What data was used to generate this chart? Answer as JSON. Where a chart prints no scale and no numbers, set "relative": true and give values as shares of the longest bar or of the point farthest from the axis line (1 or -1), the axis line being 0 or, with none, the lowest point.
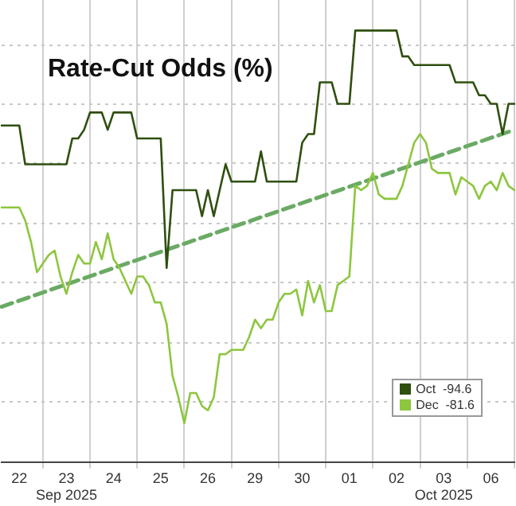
{
  "chart_data": {
    "type": "line",
    "title": "Rate-Cut Odds (%)",
    "relative": true,
    "grid": true,
    "legend": "bottom right",
    "categories": [
      null,
      null,
      null,
      "22",
      null,
      null,
      null,
      null,
      null,
      null,
      null,
      "23\nSep 2025",
      null,
      null,
      null,
      null,
      null,
      null,
      null,
      "24",
      null,
      null,
      null,
      null,
      null,
      null,
      null,
      "25",
      null,
      null,
      null,
      null,
      null,
      null,
      null,
      "26",
      null,
      null,
      null,
      null,
      null,
      null,
      null,
      "29",
      null,
      null,
      null,
      null,
      null,
      null,
      null,
      "30",
      null,
      null,
      null,
      null,
      null,
      null,
      null,
      "01",
      null,
      null,
      null,
      null,
      null,
      null,
      null,
      "02",
      null,
      null,
      null,
      null,
      null,
      null,
      null,
      "03\nOct 2025",
      null,
      null,
      null,
      null,
      null,
      null,
      null,
      "06",
      null,
      null,
      null,
      null
    ],
    "series": [
      {
        "type": "line",
        "color": "#6aaa64",
        "line_style": "dashed",
        "values": [
          0.36,
          null,
          null,
          null,
          null,
          null,
          null,
          null,
          null,
          null,
          null,
          null,
          null,
          null,
          null,
          null,
          null,
          null,
          null,
          null,
          null,
          null,
          null,
          null,
          null,
          null,
          null,
          null,
          null,
          null,
          null,
          null,
          null,
          null,
          null,
          null,
          null,
          null,
          null,
          null,
          null,
          null,
          null,
          null,
          null,
          null,
          null,
          null,
          null,
          null,
          null,
          null,
          null,
          null,
          null,
          null,
          null,
          null,
          null,
          null,
          null,
          null,
          null,
          null,
          null,
          null,
          null,
          null,
          null,
          null,
          null,
          null,
          null,
          null,
          null,
          null,
          null,
          null,
          null,
          null,
          null,
          null,
          null,
          null,
          null,
          null,
          null,
          0.77
        ]
      },
      {
        "name": "Oct  -94.6",
        "color": "#2f4f0f",
        "values": [
          0.78,
          0.78,
          0.78,
          0.78,
          0.69,
          0.69,
          0.69,
          0.69,
          0.69,
          0.69,
          0.69,
          0.69,
          0.75,
          0.75,
          0.77,
          0.81,
          0.81,
          0.81,
          0.77,
          0.81,
          0.81,
          0.81,
          0.81,
          0.75,
          0.75,
          0.75,
          0.75,
          0.75,
          0.45,
          0.63,
          0.63,
          0.63,
          0.63,
          0.63,
          0.57,
          0.63,
          0.57,
          0.63,
          0.69,
          0.65,
          0.65,
          0.65,
          0.65,
          0.65,
          0.72,
          0.65,
          0.65,
          0.65,
          0.65,
          0.65,
          0.65,
          0.74,
          0.76,
          0.76,
          0.88,
          0.88,
          0.88,
          0.83,
          0.83,
          0.83,
          1,
          1,
          1,
          1,
          1,
          1,
          1,
          1,
          0.94,
          0.94,
          0.92,
          0.92,
          0.92,
          0.92,
          0.92,
          0.92,
          0.92,
          0.88,
          0.88,
          0.88,
          0.88,
          0.85,
          0.85,
          0.83,
          0.83,
          0.76,
          0.83,
          0.83
        ]
      },
      {
        "name": "Dec  -81.6",
        "color": "#8dc63f",
        "values": [
          0.59,
          0.59,
          0.59,
          0.59,
          0.56,
          0.51,
          0.44,
          0.46,
          0.48,
          0.49,
          0.43,
          0.39,
          0.44,
          0.48,
          0.46,
          0.46,
          0.51,
          0.47,
          0.53,
          0.47,
          0.45,
          0.42,
          0.39,
          0.43,
          0.43,
          0.41,
          0.37,
          0.37,
          0.32,
          0.2,
          0.15,
          0.09,
          0.16,
          0.16,
          0.13,
          0.12,
          0.15,
          0.25,
          0.25,
          0.26,
          0.26,
          0.26,
          0.29,
          0.33,
          0.31,
          0.33,
          0.33,
          0.37,
          0.39,
          0.39,
          0.4,
          0.34,
          0.42,
          0.37,
          0.41,
          0.35,
          0.35,
          0.41,
          0.42,
          0.43,
          0.64,
          0.63,
          0.64,
          0.67,
          0.62,
          0.61,
          0.61,
          0.61,
          0.64,
          0.69,
          0.74,
          0.76,
          0.74,
          0.68,
          0.67,
          0.67,
          0.67,
          0.62,
          0.66,
          0.65,
          0.64,
          0.61,
          0.64,
          0.65,
          0.63,
          0.67,
          0.64,
          0.63
        ]
      }
    ]
  }
}
